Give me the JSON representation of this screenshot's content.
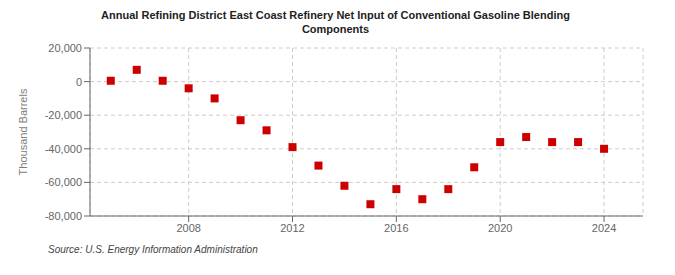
{
  "chart_data": {
    "type": "scatter",
    "title": "Annual Refining District East Coast Refinery Net Input of Conventional Gasoline Blending\nComponents",
    "ylabel": "Thousand Barrels",
    "annotation": "Source: U.S. Energy Information Administration",
    "x": [
      2005,
      2006,
      2007,
      2008,
      2009,
      2010,
      2011,
      2012,
      2013,
      2014,
      2015,
      2016,
      2017,
      2018,
      2019,
      2020,
      2021,
      2022,
      2023,
      2024
    ],
    "values": [
      500,
      7000,
      500,
      -4000,
      -10000,
      -23000,
      -29000,
      -39000,
      -50000,
      -62000,
      -73000,
      -64000,
      -70000,
      -64000,
      -51000,
      -36000,
      -33000,
      -36000,
      -36000,
      -40000
    ],
    "color": "#cc0000",
    "marker": "square",
    "xlim": [
      2004.2,
      2025.5
    ],
    "xticks": [
      2008,
      2012,
      2016,
      2020,
      2024
    ],
    "ylim": [
      -80000,
      20000
    ],
    "yticks": [
      {
        "value": -80000,
        "label": "-80,000"
      },
      {
        "value": -60000,
        "label": "-60,000"
      },
      {
        "value": -40000,
        "label": "-40,000"
      },
      {
        "value": -20000,
        "label": "-20,000"
      },
      0,
      {
        "value": 20000,
        "label": "20,000"
      }
    ],
    "grid": true
  }
}
